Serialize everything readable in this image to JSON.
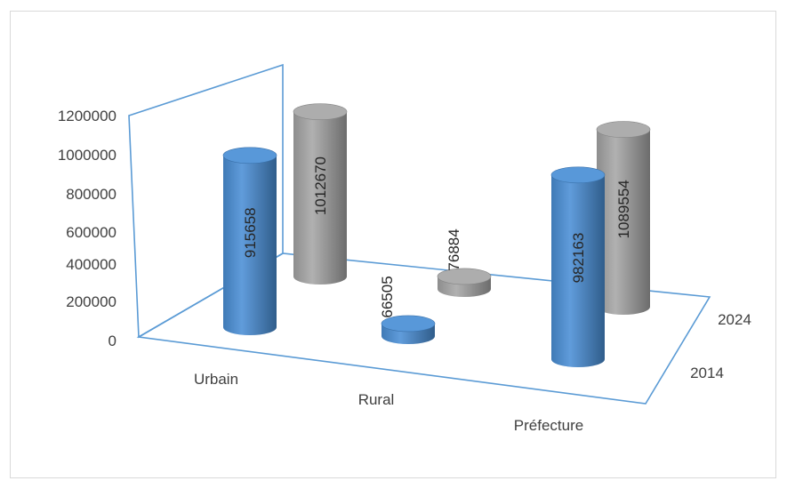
{
  "chart_data": {
    "type": "bar",
    "subtype": "3d-cylinder",
    "categories": [
      "Urbain",
      "Rural",
      "Préfecture"
    ],
    "series": [
      {
        "name": "2014",
        "color": "#4a8fd6",
        "values": [
          915658,
          66505,
          982163
        ]
      },
      {
        "name": "2024",
        "color": "#a6a6a6",
        "values": [
          1012670,
          76884,
          1089554
        ]
      }
    ],
    "ylim": [
      0,
      1200000
    ],
    "yticks": [
      "1200000",
      "1000000",
      "800000",
      "600000",
      "400000",
      "200000",
      "0"
    ],
    "data_labels": true,
    "axis_color": "#5b9bd5",
    "title": "",
    "xlabel": "",
    "ylabel": ""
  }
}
